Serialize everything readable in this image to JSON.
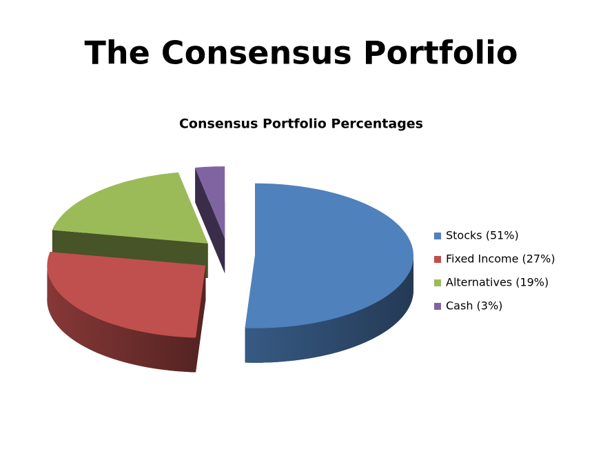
{
  "slide_title": "The Consensus Portfolio",
  "chart_data": {
    "type": "pie3d",
    "title": "Consensus Portfolio Percentages",
    "categories": [
      "Stocks (51%)",
      "Fixed Income (27%)",
      "Alternatives (19%)",
      "Cash (3%)"
    ],
    "values": [
      51,
      27,
      19,
      3
    ],
    "colors": [
      "#4f81bd",
      "#c0504d",
      "#9bbb59",
      "#8064a2"
    ],
    "legend": "right"
  }
}
